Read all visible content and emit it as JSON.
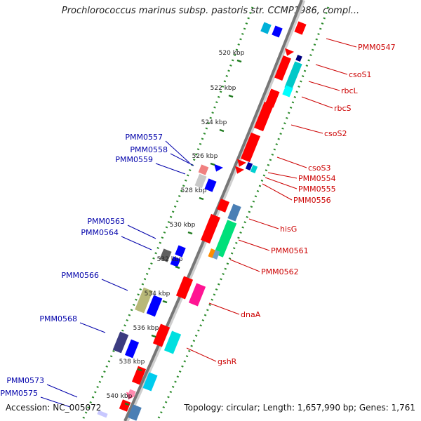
{
  "title": "Prochlorococcus marinus subsp. pastoris str. CCMP1986, compl...",
  "footer": {
    "accession": "Accession: NC_005072",
    "summary": "Topology: circular; Length: 1,657,990 bp; Genes: 1,761"
  },
  "colors": {
    "right_label": "#cc0000",
    "left_label": "#0000aa",
    "backbone": "#888888",
    "tick": "#1f7a1f"
  },
  "scale_labels": [
    "520 kbp",
    "522 kbp",
    "524 kbp",
    "526 kbp",
    "528 kbp",
    "530 kbp",
    "532 kbp",
    "534 kbp",
    "536 kbp",
    "538 kbp",
    "540 kbp"
  ],
  "right_genes": [
    "PMM0547",
    "csoS1",
    "rbcL",
    "rbcS",
    "csoS2",
    "csoS3",
    "PMM0554",
    "PMM0555",
    "PMM0556",
    "hisG",
    "PMM0561",
    "PMM0562",
    "dnaA",
    "gshR"
  ],
  "left_genes": [
    "PMM0557",
    "PMM0558",
    "PMM0559",
    "PMM0563",
    "PMM0564",
    "PMM0566",
    "PMM0568",
    "PMM0573",
    "PMM0575"
  ]
}
